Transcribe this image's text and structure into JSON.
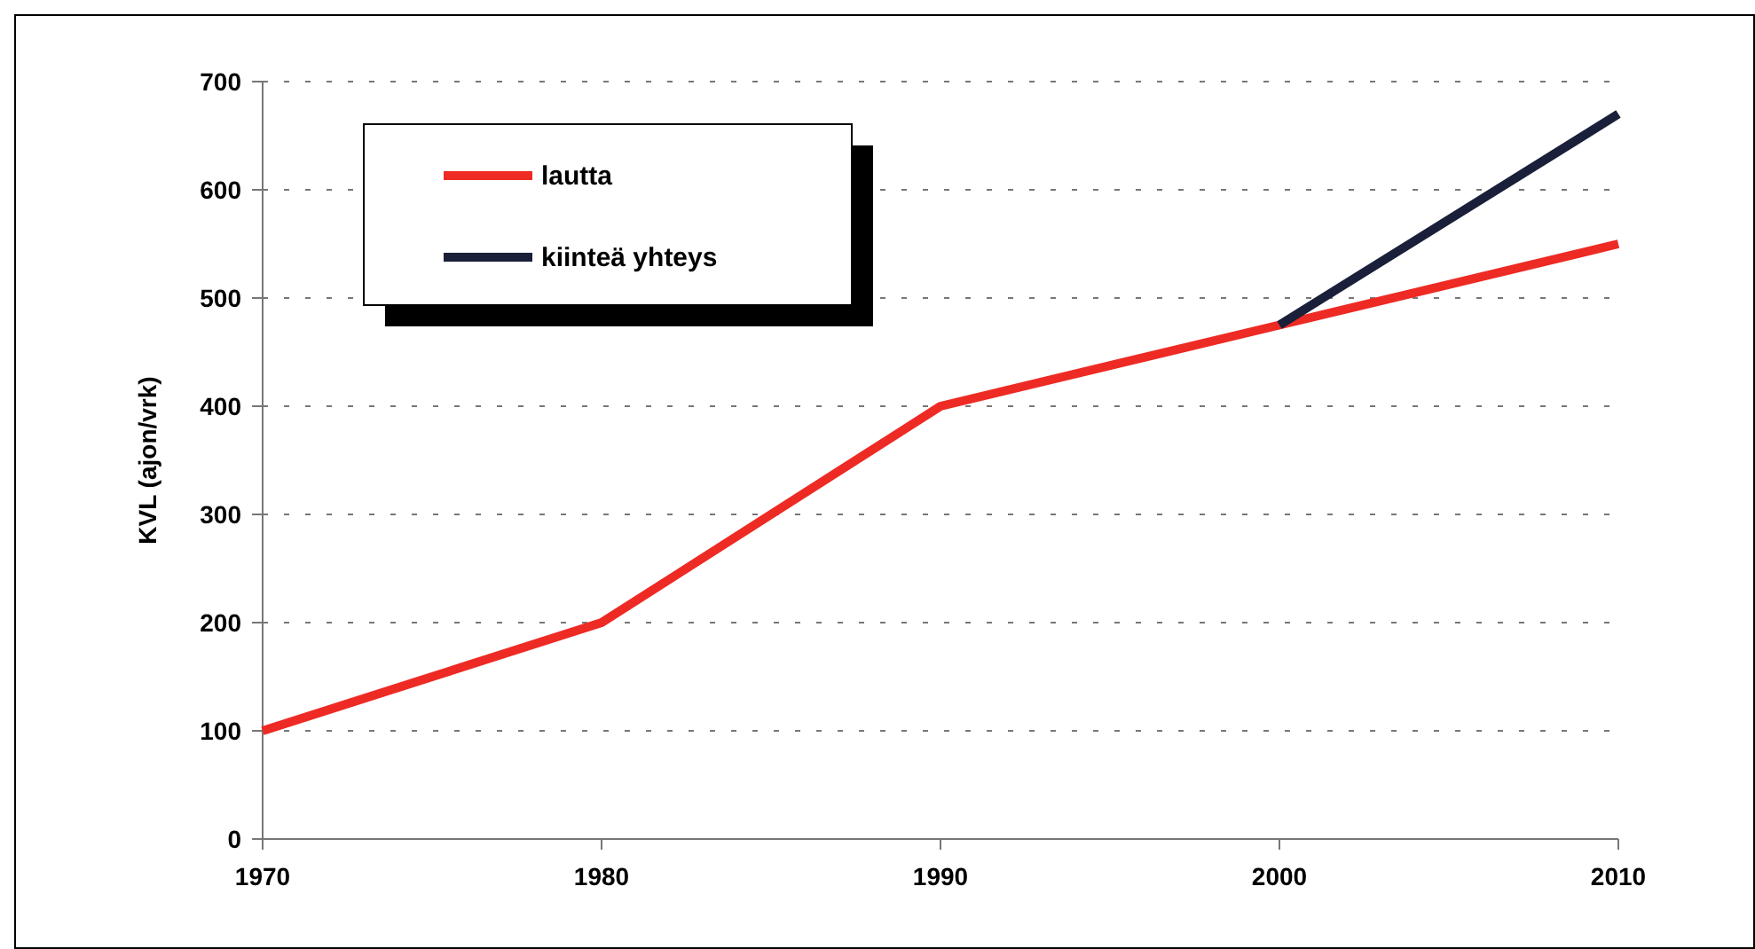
{
  "chart_data": {
    "type": "line",
    "ylabel": "KVL (ajon/vrk)",
    "x": [
      1970,
      1980,
      1990,
      2000,
      2010
    ],
    "series": [
      {
        "name": "lautta",
        "color": "#ee2a24",
        "values": [
          100,
          200,
          400,
          475,
          550
        ]
      },
      {
        "name": "kiinteä yhteys",
        "color": "#1a1f3a",
        "x": [
          2000,
          2010
        ],
        "values": [
          475,
          670
        ]
      }
    ],
    "xlim": [
      1970,
      2010
    ],
    "xticks": [
      1970,
      1980,
      1990,
      2000,
      2010
    ],
    "ylim": [
      0,
      700
    ],
    "yticks": [
      0,
      100,
      200,
      300,
      400,
      500,
      600,
      700
    ],
    "grid": "y",
    "legend": "top left",
    "marker": "none",
    "line_style": "solid"
  }
}
